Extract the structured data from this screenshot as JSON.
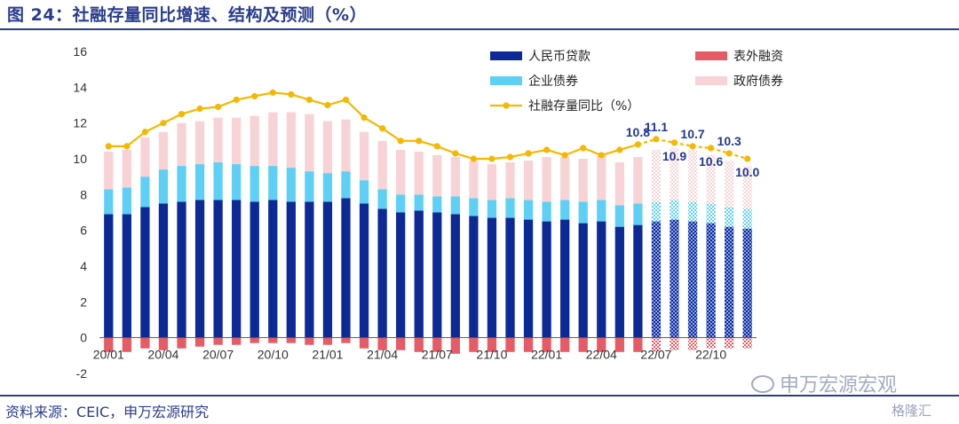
{
  "header": {
    "title": "图 24：社融存量同比增速、结构及预测（%）"
  },
  "footer": {
    "source": "资料来源：CEIC，申万宏源研究"
  },
  "watermark": {
    "brand": "申万宏源宏观",
    "corner": "格隆汇"
  },
  "colors": {
    "loans": "#0b2a96",
    "corp_bonds": "#5fd0f5",
    "gov_bonds": "#f8d3d5",
    "outside": "#e55b66",
    "yoy": "#f5b800",
    "label": "#1f3a93"
  },
  "chart_data": {
    "type": "bar",
    "stacked": true,
    "x": [
      "20/01",
      "20/02",
      "20/03",
      "20/04",
      "20/05",
      "20/06",
      "20/07",
      "20/08",
      "20/09",
      "20/10",
      "20/11",
      "20/12",
      "21/01",
      "21/02",
      "21/03",
      "21/04",
      "21/05",
      "21/06",
      "21/07",
      "21/08",
      "21/09",
      "21/10",
      "21/11",
      "21/12",
      "22/01",
      "22/02",
      "22/03",
      "22/04",
      "22/05",
      "22/06",
      "22/07",
      "22/08",
      "22/09",
      "22/10",
      "22/11",
      "22/12"
    ],
    "xtick_labels": [
      "20/01",
      "20/04",
      "20/07",
      "20/10",
      "21/01",
      "21/04",
      "21/07",
      "21/10",
      "22/01",
      "22/04",
      "22/07",
      "22/10"
    ],
    "forecast_from": "22/07",
    "ylim": [
      -2,
      16
    ],
    "yticks": [
      -2,
      0,
      2,
      4,
      6,
      8,
      10,
      12,
      14,
      16
    ],
    "series": [
      {
        "name": "人民币贷款",
        "kind": "bar",
        "values": [
          6.9,
          6.9,
          7.3,
          7.5,
          7.6,
          7.7,
          7.7,
          7.7,
          7.6,
          7.7,
          7.6,
          7.6,
          7.6,
          7.8,
          7.5,
          7.2,
          7.0,
          7.1,
          7.0,
          6.9,
          6.8,
          6.7,
          6.7,
          6.6,
          6.5,
          6.6,
          6.4,
          6.5,
          6.2,
          6.3,
          6.5,
          6.6,
          6.5,
          6.4,
          6.2,
          6.1
        ]
      },
      {
        "name": "企业债券",
        "kind": "bar",
        "values": [
          1.4,
          1.5,
          1.7,
          1.9,
          2.0,
          2.0,
          2.1,
          2.0,
          2.0,
          1.9,
          1.9,
          1.7,
          1.6,
          1.5,
          1.3,
          1.1,
          1.0,
          0.9,
          0.9,
          1.0,
          1.0,
          1.0,
          1.1,
          1.1,
          1.1,
          1.1,
          1.2,
          1.2,
          1.2,
          1.2,
          1.1,
          1.1,
          1.1,
          1.1,
          1.1,
          1.1
        ]
      },
      {
        "name": "政府债券",
        "kind": "bar",
        "values": [
          2.1,
          2.1,
          2.2,
          2.1,
          2.4,
          2.4,
          2.5,
          2.6,
          2.8,
          3.0,
          3.1,
          3.2,
          2.9,
          2.9,
          2.7,
          2.7,
          2.5,
          2.4,
          2.3,
          2.2,
          2.1,
          2.0,
          2.0,
          2.2,
          2.5,
          2.4,
          2.4,
          2.5,
          2.4,
          2.6,
          2.9,
          2.9,
          2.9,
          2.7,
          2.6,
          2.4
        ]
      },
      {
        "name": "表外融资",
        "kind": "bar",
        "values": [
          -0.8,
          -0.8,
          -0.6,
          -0.7,
          -0.6,
          -0.5,
          -0.4,
          -0.4,
          -0.3,
          -0.3,
          -0.3,
          -0.4,
          -0.4,
          -0.3,
          -0.6,
          -0.7,
          -0.7,
          -0.8,
          -0.8,
          -0.9,
          -0.8,
          -0.8,
          -0.8,
          -0.8,
          -0.8,
          -0.8,
          -0.8,
          -0.8,
          -0.8,
          -0.8,
          -0.8,
          -0.7,
          -0.7,
          -0.6,
          -0.6,
          -0.6
        ]
      },
      {
        "name": "社融存量同比（%）",
        "kind": "line",
        "values": [
          10.7,
          10.7,
          11.5,
          12.0,
          12.5,
          12.8,
          12.9,
          13.3,
          13.5,
          13.7,
          13.6,
          13.3,
          13.0,
          13.3,
          12.3,
          11.7,
          11.0,
          11.0,
          10.7,
          10.3,
          10.0,
          10.0,
          10.1,
          10.3,
          10.5,
          10.2,
          10.6,
          10.2,
          10.5,
          10.8,
          11.1,
          10.9,
          10.7,
          10.6,
          10.3,
          10.0
        ]
      }
    ],
    "annotations": [
      {
        "x": "22/06",
        "text": "10.8",
        "position": "above"
      },
      {
        "x": "22/07",
        "text": "11.1",
        "position": "above"
      },
      {
        "x": "22/08",
        "text": "10.9",
        "position": "below"
      },
      {
        "x": "22/09",
        "text": "10.7",
        "position": "above"
      },
      {
        "x": "22/10",
        "text": "10.6",
        "position": "below"
      },
      {
        "x": "22/11",
        "text": "10.3",
        "position": "above"
      },
      {
        "x": "22/12",
        "text": "10.0",
        "position": "below"
      }
    ],
    "legend": {
      "placement": "top-right",
      "items": [
        {
          "label": "人民币贷款",
          "series": 0
        },
        {
          "label": "表外融资",
          "series": 3
        },
        {
          "label": "企业债券",
          "series": 1
        },
        {
          "label": "政府债券",
          "series": 2
        },
        {
          "label": "社融存量同比（%）",
          "series": 4
        }
      ]
    }
  }
}
